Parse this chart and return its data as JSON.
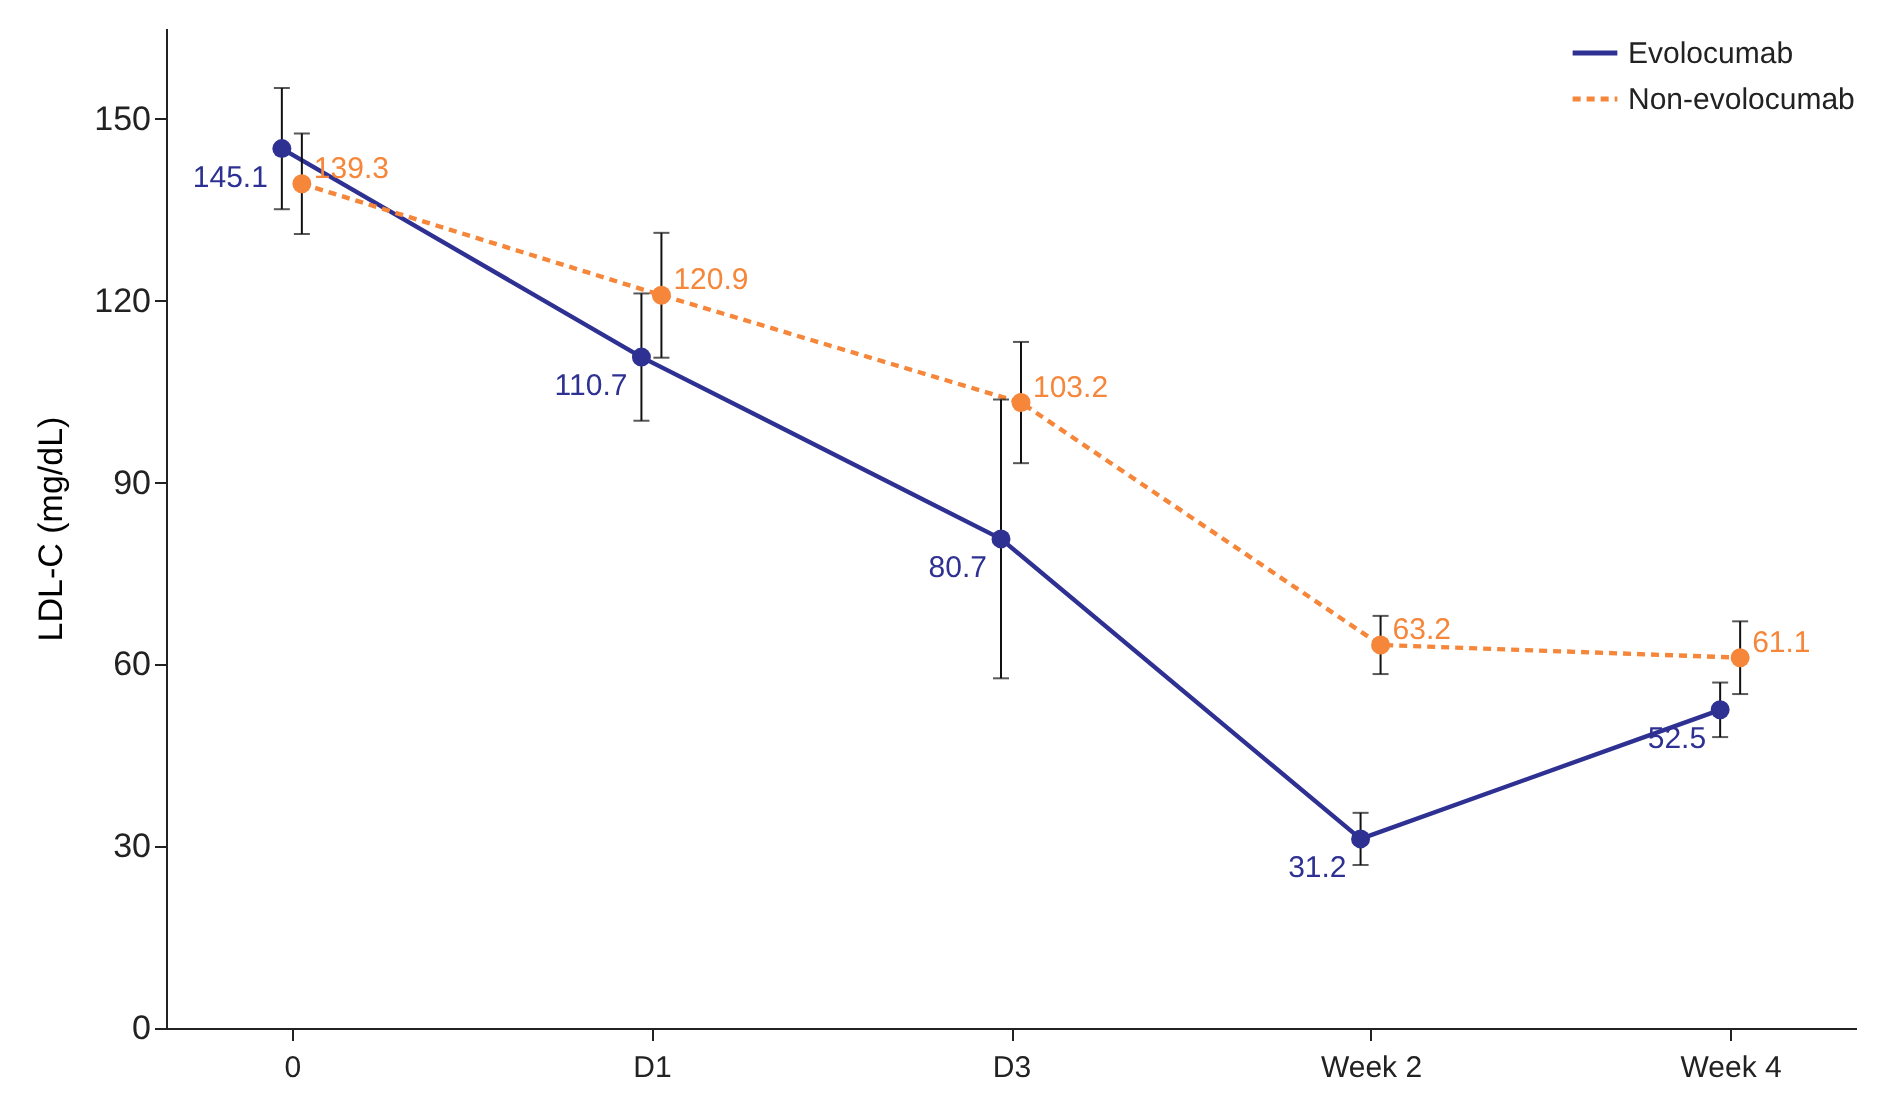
{
  "chart_data": {
    "type": "line",
    "ylabel": "LDL-C (mg/dL)",
    "categories": [
      "0",
      "D1",
      "D3",
      "Week 2",
      "Week 4"
    ],
    "ylim": [
      0,
      165
    ],
    "yticks": [
      0,
      30,
      60,
      90,
      120,
      150
    ],
    "series": [
      {
        "name": "Evolocumab",
        "color": "#2e3192",
        "values": [
          145.1,
          110.7,
          80.7,
          31.2,
          52.5
        ],
        "errors": [
          10,
          10.5,
          23,
          4.3,
          4.5
        ],
        "line_style": "solid"
      },
      {
        "name": "Non-evolocumab",
        "color": "#f5863a",
        "values": [
          139.3,
          120.9,
          103.2,
          63.2,
          61.1
        ],
        "errors": [
          8.3,
          10.3,
          10,
          4.8,
          6
        ],
        "line_style": "dashed"
      }
    ],
    "data_labels": true,
    "marker": "circle",
    "legend": "top right",
    "grid": false
  }
}
